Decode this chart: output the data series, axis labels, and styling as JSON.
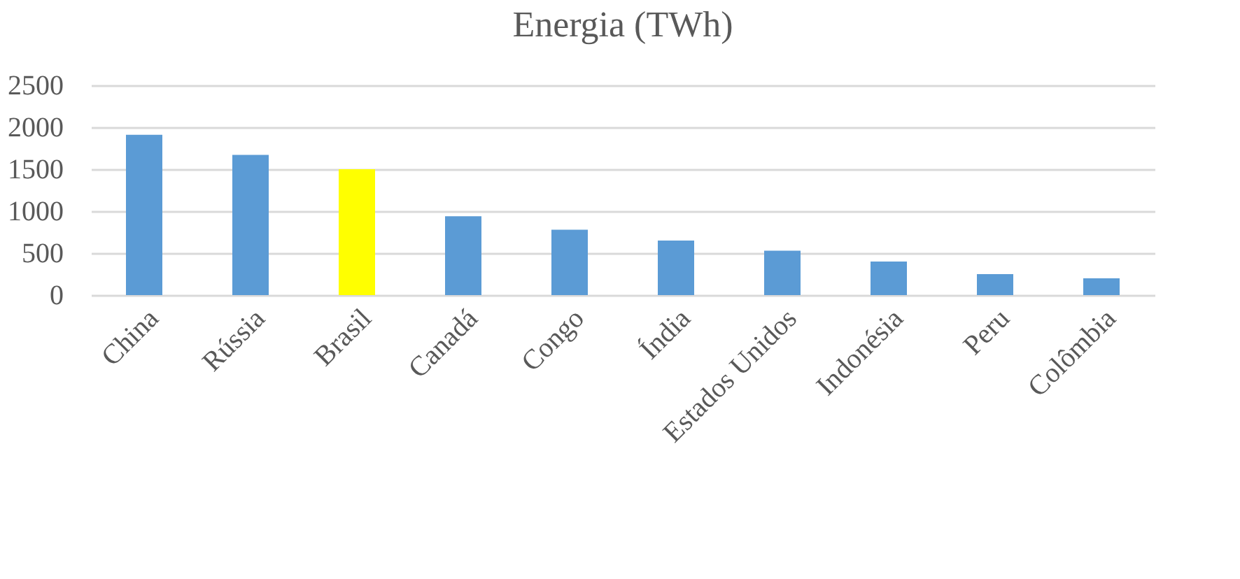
{
  "chart_data": {
    "type": "bar",
    "title": "Energia (TWh)",
    "categories": [
      "China",
      "Rússia",
      "Brasil",
      "Canadá",
      "Congo",
      "Índia",
      "Estados Unidos",
      "Indonésia",
      "Peru",
      "Colômbia"
    ],
    "values": [
      1910,
      1670,
      1500,
      940,
      780,
      650,
      530,
      400,
      250,
      200
    ],
    "colors": [
      "#5b9bd5",
      "#5b9bd5",
      "#ffff00",
      "#5b9bd5",
      "#5b9bd5",
      "#5b9bd5",
      "#5b9bd5",
      "#5b9bd5",
      "#5b9bd5",
      "#5b9bd5"
    ],
    "ylim": [
      0,
      2500
    ],
    "yticks": [
      0,
      500,
      1000,
      1500,
      2000,
      2500
    ],
    "grid": "y"
  }
}
